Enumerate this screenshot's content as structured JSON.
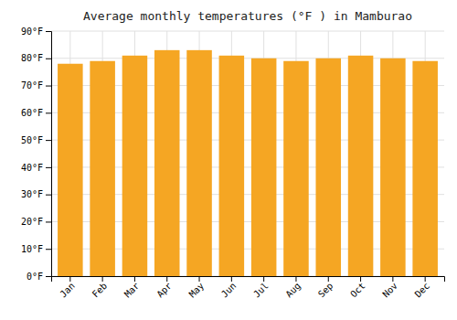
{
  "chart_data": {
    "type": "bar",
    "title": "Average monthly temperatures (°F ) in Mamburao",
    "categories": [
      "Jan",
      "Feb",
      "Mar",
      "Apr",
      "May",
      "Jun",
      "Jul",
      "Aug",
      "Sep",
      "Oct",
      "Nov",
      "Dec"
    ],
    "values": [
      78,
      79,
      81,
      83,
      83,
      81,
      80,
      79,
      80,
      81,
      80,
      79
    ],
    "color": "#F5A623",
    "ylim": [
      0,
      90
    ],
    "yticks": [
      {
        "value": 0,
        "label": "0°F"
      },
      {
        "value": 10,
        "label": "10°F"
      },
      {
        "value": 20,
        "label": "20°F"
      },
      {
        "value": 30,
        "label": "30°F"
      },
      {
        "value": 40,
        "label": "40°F"
      },
      {
        "value": 50,
        "label": "50°F"
      },
      {
        "value": 60,
        "label": "60°F"
      },
      {
        "value": 70,
        "label": "70°F"
      },
      {
        "value": 80,
        "label": "80°F"
      },
      {
        "value": 90,
        "label": "90°F"
      }
    ],
    "grid": true
  }
}
